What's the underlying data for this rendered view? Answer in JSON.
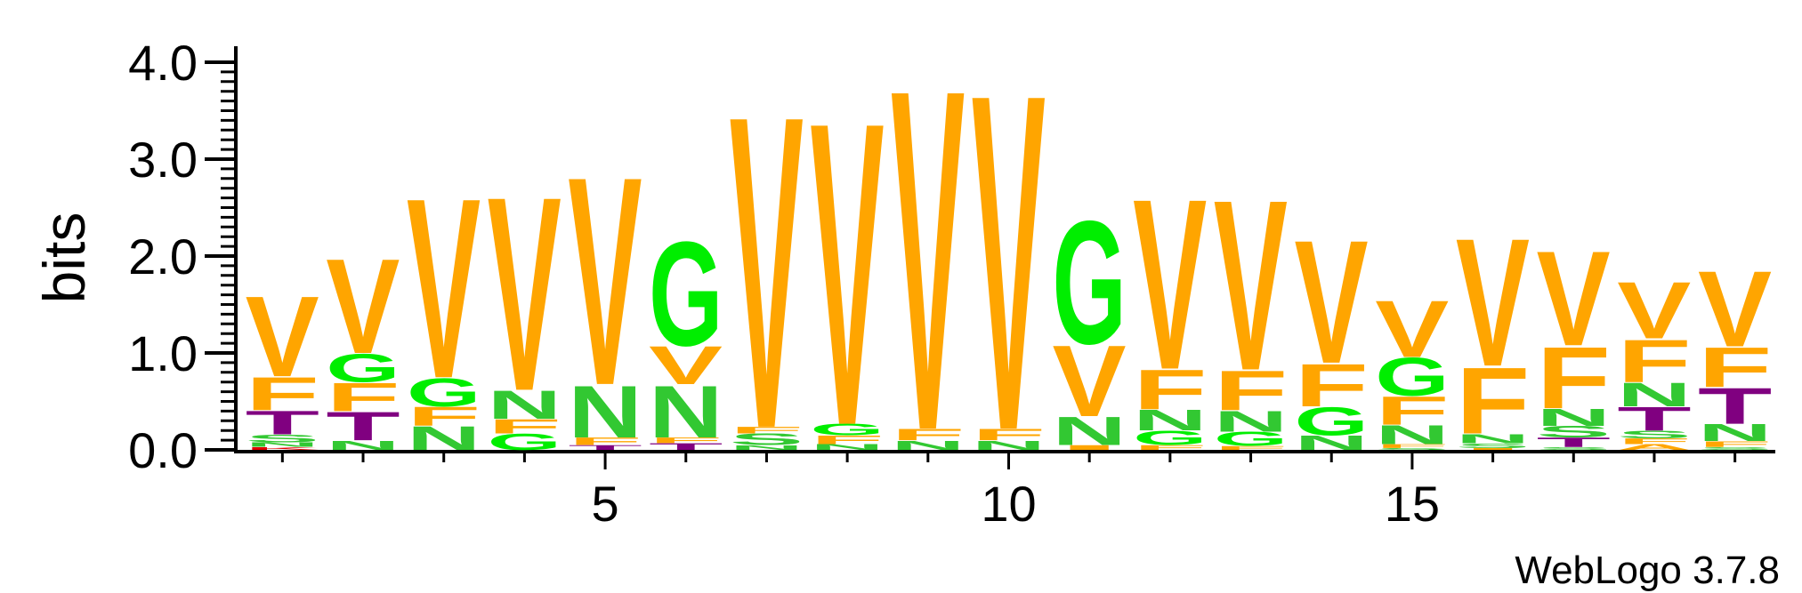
{
  "chart_data": {
    "type": "sequence-logo",
    "ylabel": "bits",
    "ylim": [
      0,
      4
    ],
    "y_ticks": [
      {
        "value": 0,
        "label": "0.0"
      },
      {
        "value": 1,
        "label": "1.0"
      },
      {
        "value": 2,
        "label": "2.0"
      },
      {
        "value": 3,
        "label": "3.0"
      },
      {
        "value": 4,
        "label": "4.0"
      }
    ],
    "x_ticks": [
      {
        "value": 5,
        "label": "5"
      },
      {
        "value": 10,
        "label": "10"
      },
      {
        "value": 15,
        "label": "15"
      }
    ],
    "xlim": [
      0.5,
      19.5
    ],
    "footer": "WebLogo 3.7.8",
    "colors": {
      "V": "#FFA500",
      "F": "#FFA500",
      "G": "#00EE00",
      "N": "#32C832",
      "S": "#32C832",
      "T": "#800080",
      "I": "#FFA500",
      "L": "#FFA500",
      "K": "#E00000",
      "C": "#32C832",
      "Q": "#32C832",
      "M": "#FFA500",
      "A": "#FFA500"
    },
    "positions": [
      {
        "pos": 1,
        "stack": [
          [
            "K",
            0.03
          ],
          [
            "N",
            0.05
          ],
          [
            "S",
            0.08
          ],
          [
            "T",
            0.25
          ],
          [
            "F",
            0.35
          ],
          [
            "V",
            0.85
          ]
        ]
      },
      {
        "pos": 2,
        "stack": [
          [
            "N",
            0.1
          ],
          [
            "T",
            0.3
          ],
          [
            "F",
            0.3
          ],
          [
            "G",
            0.3
          ],
          [
            "V",
            1.0
          ]
        ]
      },
      {
        "pos": 3,
        "stack": [
          [
            "N",
            0.25
          ],
          [
            "F",
            0.2
          ],
          [
            "G",
            0.3
          ],
          [
            "V",
            1.9
          ]
        ]
      },
      {
        "pos": 4,
        "stack": [
          [
            "G",
            0.17
          ],
          [
            "F",
            0.15
          ],
          [
            "N",
            0.3
          ],
          [
            "V",
            2.05
          ]
        ]
      },
      {
        "pos": 5,
        "stack": [
          [
            "T",
            0.05
          ],
          [
            "F",
            0.08
          ],
          [
            "N",
            0.55
          ],
          [
            "V",
            2.2
          ]
        ]
      },
      {
        "pos": 6,
        "stack": [
          [
            "T",
            0.07
          ],
          [
            "F",
            0.06
          ],
          [
            "N",
            0.55
          ],
          [
            "V",
            0.4
          ],
          [
            "G",
            1.1
          ]
        ]
      },
      {
        "pos": 7,
        "stack": [
          [
            "N",
            0.05
          ],
          [
            "S",
            0.12
          ],
          [
            "F",
            0.07
          ],
          [
            "V",
            3.3
          ]
        ]
      },
      {
        "pos": 8,
        "stack": [
          [
            "N",
            0.06
          ],
          [
            "F",
            0.09
          ],
          [
            "G",
            0.12
          ],
          [
            "V",
            3.2
          ]
        ]
      },
      {
        "pos": 9,
        "stack": [
          [
            "N",
            0.1
          ],
          [
            "F",
            0.12
          ],
          [
            "V",
            3.6
          ]
        ]
      },
      {
        "pos": 10,
        "stack": [
          [
            "N",
            0.1
          ],
          [
            "F",
            0.12
          ],
          [
            "V",
            3.55
          ]
        ]
      },
      {
        "pos": 11,
        "stack": [
          [
            "I",
            0.05
          ],
          [
            "N",
            0.3
          ],
          [
            "V",
            0.75
          ],
          [
            "G",
            1.3
          ]
        ]
      },
      {
        "pos": 12,
        "stack": [
          [
            "F",
            0.05
          ],
          [
            "G",
            0.15
          ],
          [
            "N",
            0.22
          ],
          [
            "F",
            0.42
          ],
          [
            "V",
            1.8
          ]
        ]
      },
      {
        "pos": 13,
        "stack": [
          [
            "F",
            0.04
          ],
          [
            "G",
            0.15
          ],
          [
            "N",
            0.22
          ],
          [
            "F",
            0.42
          ],
          [
            "V",
            1.8
          ]
        ]
      },
      {
        "pos": 14,
        "stack": [
          [
            "N",
            0.15
          ],
          [
            "G",
            0.3
          ],
          [
            "F",
            0.45
          ],
          [
            "V",
            1.3
          ]
        ]
      },
      {
        "pos": 15,
        "stack": [
          [
            "S",
            0.02
          ],
          [
            "F",
            0.04
          ],
          [
            "N",
            0.2
          ],
          [
            "F",
            0.3
          ],
          [
            "G",
            0.4
          ],
          [
            "V",
            0.6
          ]
        ]
      },
      {
        "pos": 16,
        "stack": [
          [
            "I",
            0.02
          ],
          [
            "S",
            0.05
          ],
          [
            "N",
            0.1
          ],
          [
            "F",
            0.7
          ],
          [
            "V",
            1.35
          ]
        ]
      },
      {
        "pos": 17,
        "stack": [
          [
            "S",
            0.03
          ],
          [
            "T",
            0.1
          ],
          [
            "S",
            0.12
          ],
          [
            "N",
            0.18
          ],
          [
            "F",
            0.65
          ],
          [
            "V",
            1.0
          ]
        ]
      },
      {
        "pos": 18,
        "stack": [
          [
            "A",
            0.06
          ],
          [
            "F",
            0.06
          ],
          [
            "S",
            0.08
          ],
          [
            "T",
            0.25
          ],
          [
            "N",
            0.25
          ],
          [
            "F",
            0.45
          ],
          [
            "V",
            0.6
          ]
        ]
      },
      {
        "pos": 19,
        "stack": [
          [
            "S",
            0.03
          ],
          [
            "F",
            0.06
          ],
          [
            "N",
            0.18
          ],
          [
            "T",
            0.38
          ],
          [
            "F",
            0.42
          ],
          [
            "V",
            0.8
          ]
        ]
      }
    ]
  }
}
